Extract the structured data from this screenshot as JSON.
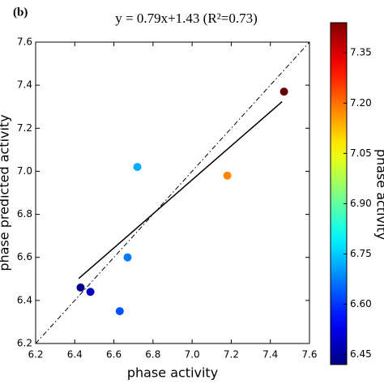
{
  "chart_data": {
    "type": "scatter",
    "panel_label": "(b)",
    "title": "y = 0.79x+1.43 (R²=0.73)",
    "x_label": "phase activity",
    "y_label": "phase predicted activity",
    "colorbar_label": "phase activity",
    "x": [
      6.43,
      6.48,
      6.67,
      6.63,
      6.72,
      7.18,
      7.47
    ],
    "values": [
      6.46,
      6.44,
      6.6,
      6.35,
      7.02,
      6.98,
      7.37
    ],
    "colormap": "jet",
    "clim": [
      6.42,
      7.44
    ],
    "colorbar_ticks": [
      6.45,
      6.6,
      6.75,
      6.9,
      7.05,
      7.2,
      7.35
    ],
    "fit": {
      "slope": 0.79,
      "intercept": 1.43,
      "xrange": [
        6.42,
        7.46
      ]
    },
    "xlim": [
      6.2,
      7.6
    ],
    "ylim": [
      6.2,
      7.6
    ],
    "xticks": [
      6.2,
      6.4,
      6.6,
      6.8,
      7.0,
      7.2,
      7.4,
      7.6
    ],
    "yticks": [
      6.2,
      6.4,
      6.6,
      6.8,
      7.0,
      7.2,
      7.4,
      7.6
    ]
  }
}
